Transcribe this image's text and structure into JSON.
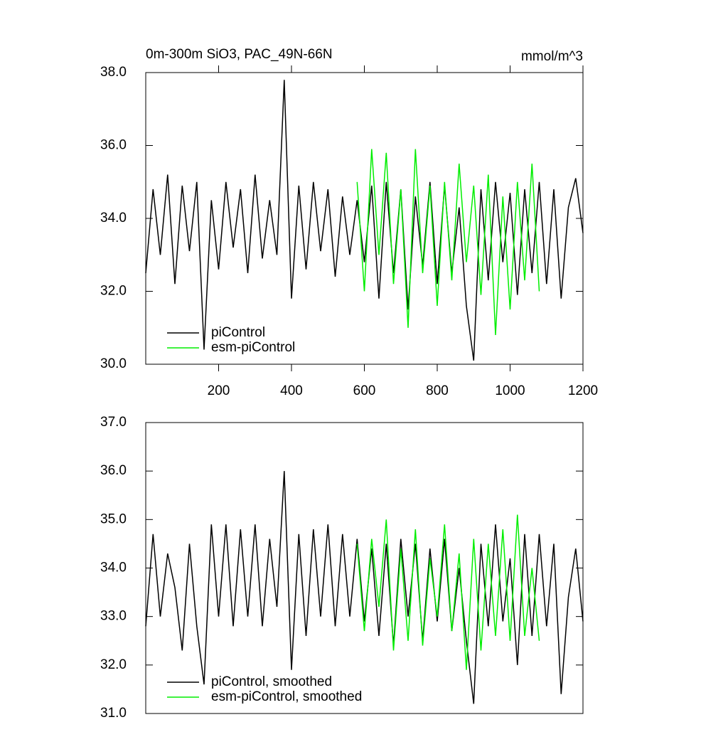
{
  "chart_data": [
    {
      "type": "line",
      "title": "0m-300m SiO3, PAC_49N-66N",
      "units": "mmol/m^3",
      "xlim": [
        0,
        1200
      ],
      "xticks": [
        200,
        400,
        600,
        800,
        1000,
        1200
      ],
      "ylim": [
        30,
        38
      ],
      "yticks": [
        {
          "value": 30,
          "label": "30.0"
        },
        {
          "value": 32,
          "label": "32.0"
        },
        {
          "value": 34,
          "label": "34.0"
        },
        {
          "value": 36,
          "label": "36.0"
        },
        {
          "value": 38,
          "label": "38.0"
        }
      ],
      "legend": "lower left",
      "series": [
        {
          "name": "piControl",
          "color": "#000000",
          "x": [
            0,
            20,
            40,
            60,
            80,
            100,
            120,
            140,
            160,
            180,
            200,
            220,
            240,
            260,
            280,
            300,
            320,
            340,
            360,
            380,
            400,
            420,
            440,
            460,
            480,
            500,
            520,
            540,
            560,
            580,
            600,
            620,
            640,
            660,
            680,
            700,
            720,
            740,
            760,
            780,
            800,
            820,
            840,
            860,
            880,
            900,
            920,
            940,
            960,
            980,
            1000,
            1020,
            1040,
            1060,
            1080,
            1100,
            1120,
            1140,
            1160,
            1180,
            1200
          ],
          "values": [
            32.5,
            34.8,
            33.0,
            35.2,
            32.2,
            34.9,
            33.1,
            35.0,
            30.4,
            34.5,
            32.6,
            35.0,
            33.2,
            34.8,
            32.5,
            35.2,
            32.9,
            34.5,
            33.0,
            37.8,
            31.8,
            34.9,
            32.6,
            35.0,
            33.1,
            34.8,
            32.4,
            34.6,
            33.0,
            34.5,
            32.8,
            34.9,
            31.8,
            35.0,
            32.5,
            34.8,
            31.5,
            34.6,
            32.7,
            35.0,
            32.2,
            34.9,
            32.5,
            34.3,
            31.6,
            30.1,
            34.8,
            32.3,
            35.0,
            32.8,
            34.7,
            31.9,
            34.8,
            32.5,
            35.0,
            32.2,
            34.8,
            31.8,
            34.3,
            35.1,
            33.6
          ]
        },
        {
          "name": "esm-piControl",
          "color": "#00ee00",
          "x": [
            580,
            600,
            620,
            640,
            660,
            680,
            700,
            720,
            740,
            760,
            780,
            800,
            820,
            840,
            860,
            880,
            900,
            920,
            940,
            960,
            980,
            1000,
            1020,
            1040,
            1060,
            1080
          ],
          "values": [
            35.0,
            32.0,
            35.9,
            33.0,
            35.8,
            32.2,
            34.8,
            31.0,
            35.9,
            32.5,
            34.9,
            31.6,
            35.0,
            32.3,
            35.5,
            32.8,
            34.9,
            31.9,
            35.2,
            30.8,
            34.6,
            31.5,
            35.0,
            32.3,
            35.5,
            32.0
          ]
        }
      ]
    },
    {
      "type": "line",
      "xlim": [
        0,
        1200
      ],
      "ylim": [
        31,
        37
      ],
      "yticks": [
        {
          "value": 31,
          "label": "31.0"
        },
        {
          "value": 32,
          "label": "32.0"
        },
        {
          "value": 33,
          "label": "33.0"
        },
        {
          "value": 34,
          "label": "34.0"
        },
        {
          "value": 35,
          "label": "35.0"
        },
        {
          "value": 36,
          "label": "36.0"
        },
        {
          "value": 37,
          "label": "37.0"
        }
      ],
      "legend": "lower left",
      "series": [
        {
          "name": "piControl, smoothed",
          "color": "#000000",
          "x": [
            0,
            20,
            40,
            60,
            80,
            100,
            120,
            140,
            160,
            180,
            200,
            220,
            240,
            260,
            280,
            300,
            320,
            340,
            360,
            380,
            400,
            420,
            440,
            460,
            480,
            500,
            520,
            540,
            560,
            580,
            600,
            620,
            640,
            660,
            680,
            700,
            720,
            740,
            760,
            780,
            800,
            820,
            840,
            860,
            880,
            900,
            920,
            940,
            960,
            980,
            1000,
            1020,
            1040,
            1060,
            1080,
            1100,
            1120,
            1140,
            1160,
            1180,
            1200
          ],
          "values": [
            32.8,
            34.7,
            33.0,
            34.3,
            33.6,
            32.3,
            34.5,
            32.8,
            31.6,
            34.9,
            33.0,
            34.9,
            32.8,
            34.8,
            33.0,
            34.9,
            32.8,
            34.6,
            33.2,
            36.0,
            31.9,
            34.7,
            32.6,
            34.8,
            33.0,
            34.9,
            32.8,
            34.7,
            33.0,
            34.6,
            32.9,
            34.4,
            32.6,
            34.5,
            32.4,
            34.6,
            33.0,
            34.5,
            32.5,
            34.4,
            32.9,
            34.6,
            32.7,
            34.0,
            32.5,
            31.2,
            34.5,
            32.8,
            34.9,
            32.9,
            34.2,
            32.0,
            34.7,
            32.6,
            34.7,
            32.8,
            34.5,
            31.4,
            33.4,
            34.4,
            32.9
          ]
        },
        {
          "name": "esm-piControl, smoothed",
          "color": "#00ee00",
          "x": [
            580,
            600,
            620,
            640,
            660,
            680,
            700,
            720,
            740,
            760,
            780,
            800,
            820,
            840,
            860,
            880,
            900,
            920,
            940,
            960,
            980,
            1000,
            1020,
            1040,
            1060,
            1080
          ],
          "values": [
            34.5,
            32.7,
            34.6,
            33.2,
            35.0,
            32.3,
            34.4,
            32.5,
            34.8,
            32.4,
            34.2,
            33.0,
            34.9,
            32.7,
            34.3,
            31.9,
            34.6,
            32.3,
            34.5,
            32.6,
            34.8,
            32.5,
            35.1,
            32.6,
            34.0,
            32.5
          ]
        }
      ]
    }
  ]
}
